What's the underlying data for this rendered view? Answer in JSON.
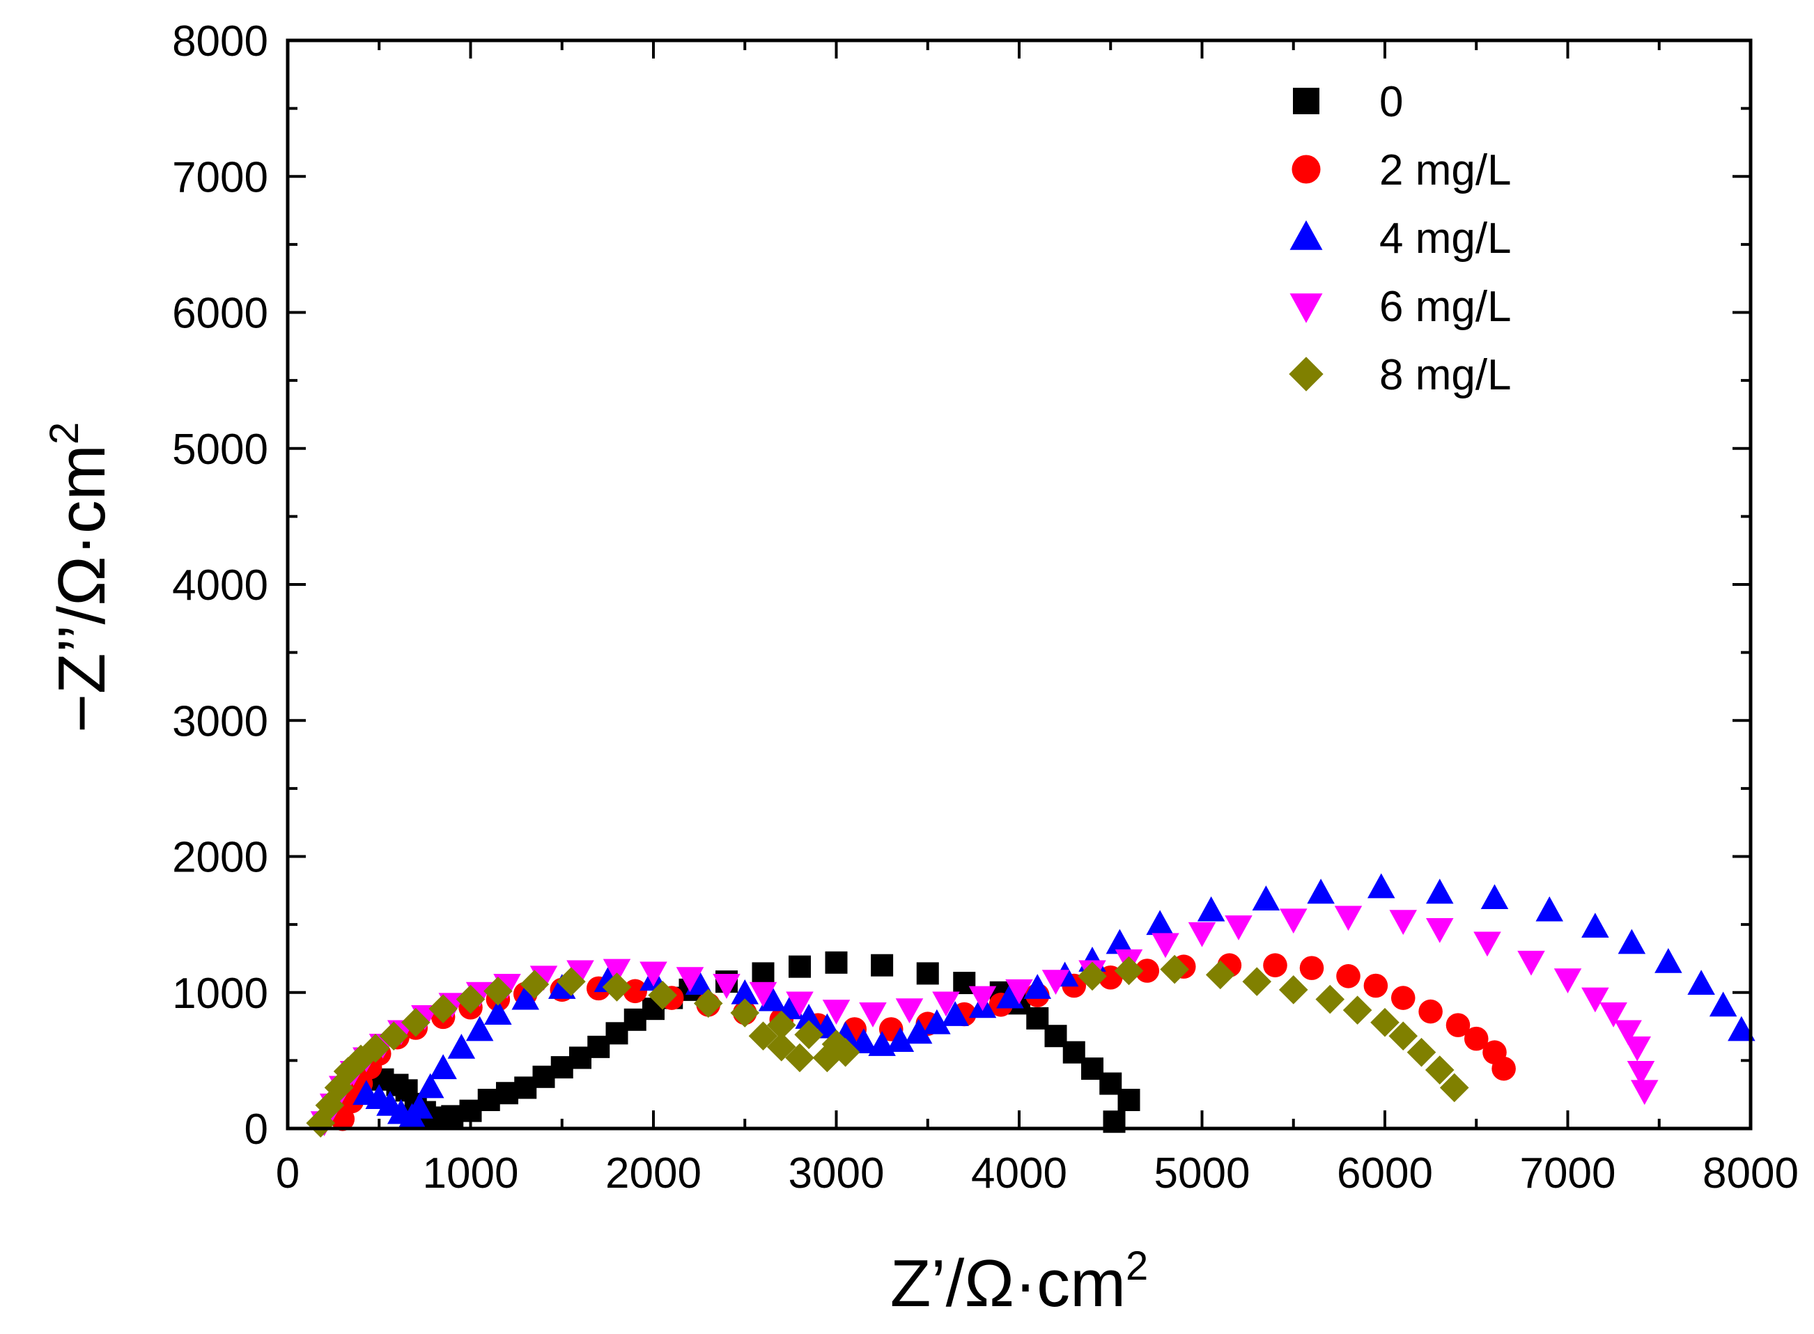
{
  "chart_data": {
    "type": "scatter",
    "title": "",
    "xlabel": "Z’/Ω·cm",
    "xlabel_sup": "2",
    "ylabel": "−Z’’/Ω·cm",
    "ylabel_sup": "2",
    "xlim": [
      0,
      8000
    ],
    "ylim": [
      0,
      8000
    ],
    "xticks": [
      0,
      1000,
      2000,
      3000,
      4000,
      5000,
      6000,
      7000,
      8000
    ],
    "yticks": [
      0,
      1000,
      2000,
      3000,
      4000,
      5000,
      6000,
      7000,
      8000
    ],
    "x_tick_labels": [
      "0",
      "1000",
      "2000",
      "3000",
      "4000",
      "5000",
      "6000",
      "7000",
      "8000"
    ],
    "y_tick_labels": [
      "0",
      "1000",
      "2000",
      "3000",
      "4000",
      "5000",
      "6000",
      "7000",
      "8000"
    ],
    "grid": false,
    "legend_position": "top-right",
    "series": [
      {
        "name": "0",
        "marker": "square",
        "color": "#000000",
        "points": [
          [
            520,
            360
          ],
          [
            600,
            320
          ],
          [
            650,
            280
          ],
          [
            700,
            180
          ],
          [
            750,
            120
          ],
          [
            800,
            80
          ],
          [
            900,
            90
          ],
          [
            1000,
            130
          ],
          [
            1100,
            210
          ],
          [
            1200,
            260
          ],
          [
            1300,
            300
          ],
          [
            1400,
            380
          ],
          [
            1500,
            450
          ],
          [
            1600,
            520
          ],
          [
            1700,
            600
          ],
          [
            1800,
            700
          ],
          [
            1900,
            800
          ],
          [
            2000,
            880
          ],
          [
            2100,
            960
          ],
          [
            2200,
            1020
          ],
          [
            2400,
            1080
          ],
          [
            2600,
            1140
          ],
          [
            2800,
            1190
          ],
          [
            3000,
            1220
          ],
          [
            3250,
            1200
          ],
          [
            3500,
            1140
          ],
          [
            3700,
            1070
          ],
          [
            3900,
            1000
          ],
          [
            4000,
            920
          ],
          [
            4100,
            810
          ],
          [
            4200,
            680
          ],
          [
            4300,
            560
          ],
          [
            4400,
            440
          ],
          [
            4500,
            330
          ],
          [
            4600,
            210
          ],
          [
            4520,
            50
          ]
        ]
      },
      {
        "name": "2 mg/L",
        "marker": "circle",
        "color": "#ff0000",
        "points": [
          [
            300,
            70
          ],
          [
            350,
            200
          ],
          [
            400,
            330
          ],
          [
            450,
            450
          ],
          [
            500,
            550
          ],
          [
            600,
            670
          ],
          [
            700,
            740
          ],
          [
            850,
            820
          ],
          [
            1000,
            890
          ],
          [
            1150,
            950
          ],
          [
            1300,
            990
          ],
          [
            1500,
            1020
          ],
          [
            1700,
            1030
          ],
          [
            1900,
            1010
          ],
          [
            2100,
            960
          ],
          [
            2300,
            910
          ],
          [
            2500,
            850
          ],
          [
            2700,
            800
          ],
          [
            2900,
            760
          ],
          [
            3100,
            730
          ],
          [
            3300,
            730
          ],
          [
            3500,
            770
          ],
          [
            3700,
            840
          ],
          [
            3900,
            910
          ],
          [
            4100,
            980
          ],
          [
            4300,
            1050
          ],
          [
            4500,
            1110
          ],
          [
            4700,
            1160
          ],
          [
            4900,
            1190
          ],
          [
            5150,
            1200
          ],
          [
            5400,
            1200
          ],
          [
            5600,
            1180
          ],
          [
            5800,
            1120
          ],
          [
            5950,
            1050
          ],
          [
            6100,
            960
          ],
          [
            6250,
            860
          ],
          [
            6400,
            760
          ],
          [
            6500,
            660
          ],
          [
            6600,
            560
          ],
          [
            6650,
            440
          ]
        ]
      },
      {
        "name": "4 mg/L",
        "marker": "triangle-up",
        "color": "#0000ff",
        "points": [
          [
            430,
            250
          ],
          [
            500,
            220
          ],
          [
            560,
            170
          ],
          [
            620,
            110
          ],
          [
            680,
            80
          ],
          [
            720,
            150
          ],
          [
            780,
            300
          ],
          [
            850,
            440
          ],
          [
            950,
            590
          ],
          [
            1050,
            720
          ],
          [
            1150,
            840
          ],
          [
            1300,
            950
          ],
          [
            1500,
            1030
          ],
          [
            1750,
            1080
          ],
          [
            2000,
            1090
          ],
          [
            2250,
            1060
          ],
          [
            2500,
            990
          ],
          [
            2650,
            940
          ],
          [
            2750,
            880
          ],
          [
            2850,
            810
          ],
          [
            2950,
            740
          ],
          [
            3050,
            680
          ],
          [
            3150,
            630
          ],
          [
            3250,
            610
          ],
          [
            3350,
            640
          ],
          [
            3450,
            700
          ],
          [
            3550,
            770
          ],
          [
            3650,
            830
          ],
          [
            3800,
            890
          ],
          [
            3950,
            960
          ],
          [
            4100,
            1030
          ],
          [
            4250,
            1120
          ],
          [
            4400,
            1230
          ],
          [
            4550,
            1360
          ],
          [
            4770,
            1500
          ],
          [
            5050,
            1600
          ],
          [
            5350,
            1680
          ],
          [
            5650,
            1730
          ],
          [
            5980,
            1770
          ],
          [
            6300,
            1730
          ],
          [
            6600,
            1690
          ],
          [
            6900,
            1600
          ],
          [
            7150,
            1480
          ],
          [
            7350,
            1360
          ],
          [
            7550,
            1220
          ],
          [
            7730,
            1060
          ],
          [
            7850,
            900
          ],
          [
            7950,
            720
          ]
        ]
      },
      {
        "name": "6 mg/L",
        "marker": "triangle-down",
        "color": "#ff00ff",
        "points": [
          [
            200,
            50
          ],
          [
            250,
            180
          ],
          [
            300,
            310
          ],
          [
            360,
            420
          ],
          [
            430,
            520
          ],
          [
            520,
            620
          ],
          [
            620,
            720
          ],
          [
            750,
            830
          ],
          [
            900,
            920
          ],
          [
            1050,
            1000
          ],
          [
            1200,
            1060
          ],
          [
            1400,
            1120
          ],
          [
            1600,
            1160
          ],
          [
            1800,
            1170
          ],
          [
            2000,
            1150
          ],
          [
            2200,
            1110
          ],
          [
            2400,
            1060
          ],
          [
            2600,
            1000
          ],
          [
            2800,
            930
          ],
          [
            3000,
            870
          ],
          [
            3200,
            850
          ],
          [
            3400,
            880
          ],
          [
            3600,
            930
          ],
          [
            3800,
            970
          ],
          [
            4000,
            1020
          ],
          [
            4200,
            1090
          ],
          [
            4400,
            1160
          ],
          [
            4600,
            1240
          ],
          [
            4800,
            1360
          ],
          [
            5000,
            1440
          ],
          [
            5200,
            1490
          ],
          [
            5500,
            1540
          ],
          [
            5800,
            1560
          ],
          [
            6100,
            1530
          ],
          [
            6300,
            1470
          ],
          [
            6560,
            1370
          ],
          [
            6800,
            1230
          ],
          [
            7000,
            1100
          ],
          [
            7150,
            960
          ],
          [
            7250,
            850
          ],
          [
            7330,
            720
          ],
          [
            7380,
            600
          ],
          [
            7400,
            420
          ],
          [
            7420,
            280
          ]
        ]
      },
      {
        "name": "8 mg/L",
        "marker": "diamond",
        "color": "#808000",
        "points": [
          [
            180,
            40
          ],
          [
            230,
            170
          ],
          [
            280,
            300
          ],
          [
            330,
            420
          ],
          [
            400,
            510
          ],
          [
            480,
            590
          ],
          [
            580,
            680
          ],
          [
            700,
            780
          ],
          [
            850,
            880
          ],
          [
            1000,
            950
          ],
          [
            1150,
            1010
          ],
          [
            1350,
            1060
          ],
          [
            1550,
            1080
          ],
          [
            1800,
            1040
          ],
          [
            2050,
            980
          ],
          [
            2300,
            920
          ],
          [
            2500,
            850
          ],
          [
            2700,
            760
          ],
          [
            2850,
            690
          ],
          [
            3000,
            620
          ],
          [
            3050,
            560
          ],
          [
            2950,
            520
          ],
          [
            2800,
            520
          ],
          [
            2700,
            600
          ],
          [
            2600,
            680
          ],
          [
            4400,
            1120
          ],
          [
            4600,
            1160
          ],
          [
            4850,
            1170
          ],
          [
            5100,
            1130
          ],
          [
            5300,
            1080
          ],
          [
            5500,
            1020
          ],
          [
            5700,
            950
          ],
          [
            5850,
            870
          ],
          [
            6000,
            780
          ],
          [
            6100,
            680
          ],
          [
            6200,
            560
          ],
          [
            6300,
            430
          ],
          [
            6380,
            300
          ]
        ]
      }
    ]
  }
}
